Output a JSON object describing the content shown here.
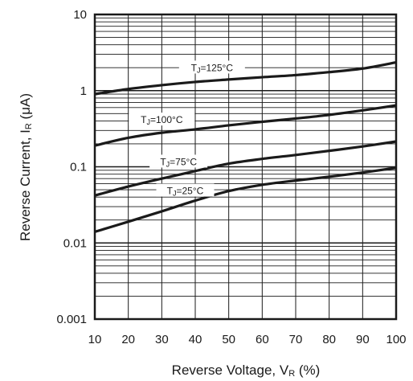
{
  "chart_data": {
    "type": "line",
    "xlabel": {
      "main": "Reverse Voltage, V",
      "subscript": "R",
      "suffix": " (%)"
    },
    "ylabel": {
      "main": "Reverse Current, I",
      "subscript": "R",
      "suffix": " (μA)"
    },
    "xlim": [
      10,
      100
    ],
    "ylim": [
      0.001,
      10
    ],
    "yscale": "log",
    "grid": true,
    "x_ticks": [
      10,
      20,
      30,
      40,
      50,
      60,
      70,
      80,
      90,
      100
    ],
    "y_ticks": [
      "0.001",
      "0.01",
      "0.1",
      "1",
      "10"
    ],
    "y_tick_values": [
      0.001,
      0.01,
      0.1,
      1,
      10
    ],
    "series": [
      {
        "name": "TJ=125°C",
        "label": {
          "prefix": "T",
          "subscript": "J",
          "suffix": "=125°C"
        },
        "x": [
          10,
          20,
          30,
          40,
          50,
          60,
          70,
          80,
          90,
          100
        ],
        "values": [
          0.9,
          1.05,
          1.18,
          1.3,
          1.4,
          1.5,
          1.6,
          1.75,
          1.95,
          2.35
        ]
      },
      {
        "name": "TJ=100°C",
        "label": {
          "prefix": "T",
          "subscript": "J",
          "suffix": "=100°C"
        },
        "x": [
          10,
          20,
          30,
          40,
          50,
          60,
          70,
          80,
          90,
          100
        ],
        "values": [
          0.19,
          0.24,
          0.28,
          0.31,
          0.35,
          0.39,
          0.43,
          0.48,
          0.55,
          0.64
        ]
      },
      {
        "name": "TJ=75°C",
        "label": {
          "prefix": "T",
          "subscript": "J",
          "suffix": "=75°C"
        },
        "x": [
          10,
          20,
          30,
          40,
          50,
          60,
          70,
          80,
          90,
          100
        ],
        "values": [
          0.042,
          0.055,
          0.07,
          0.088,
          0.11,
          0.127,
          0.143,
          0.162,
          0.185,
          0.215
        ]
      },
      {
        "name": "TJ=25°C",
        "label": {
          "prefix": "T",
          "subscript": "J",
          "suffix": "=25°C"
        },
        "x": [
          10,
          20,
          30,
          40,
          50,
          60,
          70,
          80,
          90,
          100
        ],
        "values": [
          0.014,
          0.019,
          0.026,
          0.036,
          0.048,
          0.058,
          0.066,
          0.074,
          0.084,
          0.097
        ]
      }
    ]
  }
}
